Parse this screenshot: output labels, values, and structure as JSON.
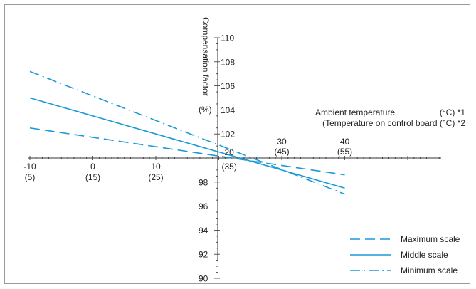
{
  "chart_data": {
    "type": "line",
    "y_axis_title": "Compensation factor",
    "y_axis_unit": "(%)",
    "x_axis_title_1": "Ambient temperature",
    "x_axis_unit_1": "(°C) *1",
    "x_axis_title_2": "(Temperature on control board (°C) *2",
    "ylim": [
      90,
      110
    ],
    "xlim": [
      -10,
      55
    ],
    "y_ticks": [
      "90",
      "92",
      "94",
      "96",
      "98",
      "102",
      "104",
      "106",
      "108",
      "110"
    ],
    "x_ticks": [
      {
        "x": -10,
        "top": "-10",
        "bottom": "(5)"
      },
      {
        "x": 0,
        "top": "0",
        "bottom": "(15)"
      },
      {
        "x": 10,
        "top": "10",
        "bottom": "(25)"
      },
      {
        "x": 20,
        "top": "20",
        "bottom": "(35)"
      },
      {
        "x": 30,
        "top": "30",
        "bottom": "(45)"
      },
      {
        "x": 40,
        "top": "40",
        "bottom": "(55)"
      }
    ],
    "series": [
      {
        "name": "Maximum scale",
        "dash": "dashed",
        "color": "#1a9ad6",
        "x": [
          -10,
          40
        ],
        "y": [
          102.5,
          98.6
        ]
      },
      {
        "name": "Middle scale",
        "dash": "solid",
        "color": "#1a9ad6",
        "x": [
          -10,
          40
        ],
        "y": [
          105.0,
          97.5
        ]
      },
      {
        "name": "Minimum scale",
        "dash": "dash-dot",
        "color": "#1a9ad6",
        "x": [
          -10,
          40
        ],
        "y": [
          107.2,
          97.0
        ]
      }
    ]
  }
}
